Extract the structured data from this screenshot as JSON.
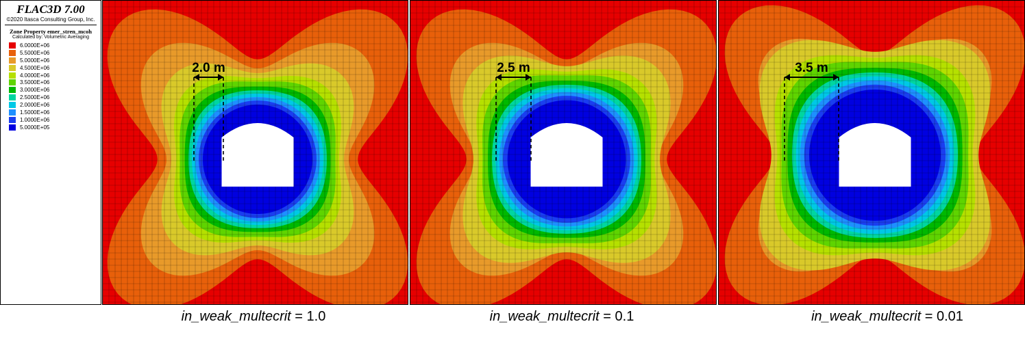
{
  "legend": {
    "title": "FLAC3D 7.00",
    "copyright": "©2020 Itasca Consulting Group, Inc.",
    "property": "Zone Property emer_stren_mcoh",
    "calc": "Calculated by: Volumetric Averaging",
    "items": [
      {
        "label": "6.0000E+06",
        "color": "#e60000"
      },
      {
        "label": "5.5000E+06",
        "color": "#e8600a"
      },
      {
        "label": "5.0000E+06",
        "color": "#e89a2a"
      },
      {
        "label": "4.5000E+06",
        "color": "#d9c92a"
      },
      {
        "label": "4.0000E+06",
        "color": "#b5e000"
      },
      {
        "label": "3.5000E+06",
        "color": "#5fd400"
      },
      {
        "label": "3.0000E+06",
        "color": "#00b800"
      },
      {
        "label": "2.5000E+06",
        "color": "#00d6a0"
      },
      {
        "label": "2.0000E+06",
        "color": "#00c8e6"
      },
      {
        "label": "1.5000E+06",
        "color": "#1e90ff"
      },
      {
        "label": "1.0000E+06",
        "color": "#1a3ef0"
      },
      {
        "label": "5.0000E+05",
        "color": "#0000e0"
      }
    ]
  },
  "panels": [
    {
      "width_label": "2.0 m",
      "caption_var": "in_weak_multecrit",
      "caption_val": " = 1.0"
    },
    {
      "width_label": "2.5 m",
      "caption_var": "in_weak_multecrit",
      "caption_val": " = 0.1"
    },
    {
      "width_label": "3.5 m",
      "caption_var": "in_weak_multecrit",
      "caption_val": " = 0.01"
    }
  ]
}
